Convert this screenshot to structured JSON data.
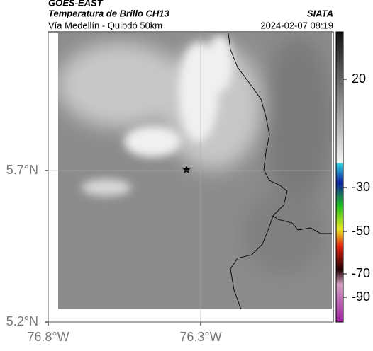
{
  "header": {
    "title": "GOES-EAST",
    "subtitle": "Temperatura de Brillo CH13",
    "location": "Vía Medellín - Quibdó 50km",
    "source": "SIATA",
    "timestamp": "2024-02-07 08:19"
  },
  "map": {
    "xlim": [
      -76.8,
      -75.865
    ],
    "ylim": [
      5.2,
      6.158
    ],
    "xticks": [
      {
        "value": -76.8,
        "label": "76.8°W"
      },
      {
        "value": -76.3,
        "label": "76.3°W"
      }
    ],
    "yticks": [
      {
        "value": 5.7,
        "label": "5.7°N"
      },
      {
        "value": 5.2,
        "label": "5.2°N"
      }
    ]
  },
  "colorbar": {
    "ticks": [
      20,
      -30,
      -50,
      -70,
      -90
    ]
  }
}
